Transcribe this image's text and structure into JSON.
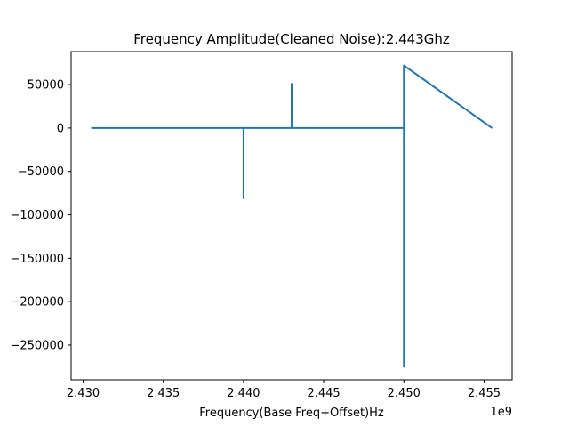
{
  "chart_data": {
    "type": "line",
    "title": "Frequency Amplitude(Cleaned Noise):2.443Ghz",
    "xlabel": "Frequency(Base Freq+Offset)Hz",
    "ylabel": "",
    "x_offset_label": "1e9",
    "xlim": [
      2.42925,
      2.45675
    ],
    "ylim": [
      -290000,
      88000
    ],
    "x_ticks": [
      2.43,
      2.435,
      2.44,
      2.445,
      2.45,
      2.455
    ],
    "x_tick_labels": [
      "2.430",
      "2.435",
      "2.440",
      "2.445",
      "2.450",
      "2.455"
    ],
    "y_ticks": [
      50000,
      0,
      -50000,
      -100000,
      -150000,
      -200000,
      -250000
    ],
    "y_tick_labels": [
      "50000",
      "0",
      "−50000",
      "−100000",
      "−150000",
      "−200000",
      "−250000"
    ],
    "grid": false,
    "series": [
      {
        "color": "#1f77b4",
        "x": [
          2.4305,
          2.44,
          2.44,
          2.44,
          2.443,
          2.443,
          2.443,
          2.45,
          2.45,
          2.45,
          2.4555
        ],
        "y": [
          0,
          0,
          -81000,
          0,
          0,
          51000,
          0,
          0,
          -275000,
          72000,
          0
        ]
      }
    ]
  }
}
